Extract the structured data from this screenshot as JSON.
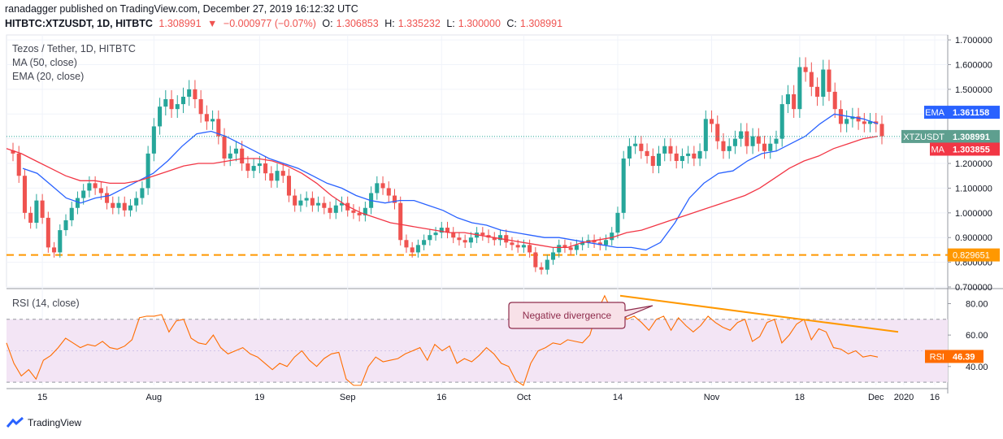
{
  "header": {
    "line1": "ranadagger published on TradingView.com, December 27, 2019 16:12:32 UTC",
    "symbol": "HITBTC:XTZUSDT, 1D, HITBTC",
    "last": "1.308991",
    "change": "−0.000977 (−0.07%)",
    "o_label": "O:",
    "o": "1.306853",
    "h_label": "H:",
    "h": "1.335232",
    "l_label": "L:",
    "l": "1.300000",
    "c_label": "C:",
    "c": "1.308991"
  },
  "legend": {
    "title": "Tezos / Tether, 1D, HITBTC",
    "ma": "MA (50, close)",
    "ema": "EMA (20, close)",
    "rsi": "RSI (14, close)"
  },
  "footer": {
    "brand": "TradingView"
  },
  "colors": {
    "up": "#26a69a",
    "down": "#ef5350",
    "ema": "#2962ff",
    "ma": "#f23645",
    "support": "#ff9800",
    "rsi": "#ff6d00",
    "rsi_band": "#f3e5f5",
    "trendline": "#ff9800"
  },
  "chart_data": [
    {
      "type": "candlestick",
      "title": "Tezos / Tether, 1D, HITBTC",
      "ylim": [
        0.7,
        1.72
      ],
      "y_ticks": [
        "1.700000",
        "1.600000",
        "1.500000",
        "1.400000",
        "1.300000",
        "1.200000",
        "1.100000",
        "1.000000",
        "0.900000",
        "0.800000",
        "0.700000"
      ],
      "x_ticks": [
        "15",
        "Aug",
        "19",
        "Sep",
        "16",
        "Oct",
        "14",
        "Nov",
        "18",
        "Dec",
        "16",
        "2020"
      ],
      "series": [
        {
          "name": "Price (approximate daily closes)",
          "values": [
            1.24,
            1.15,
            1.0,
            0.96,
            1.05,
            0.98,
            0.86,
            0.84,
            0.93,
            0.97,
            1.02,
            1.06,
            1.09,
            1.12,
            1.1,
            1.08,
            1.04,
            1.02,
            1.04,
            1.01,
            1.03,
            1.06,
            1.1,
            1.24,
            1.35,
            1.43,
            1.46,
            1.42,
            1.44,
            1.47,
            1.5,
            1.46,
            1.4,
            1.37,
            1.38,
            1.31,
            1.22,
            1.24,
            1.26,
            1.2,
            1.17,
            1.19,
            1.2,
            1.16,
            1.13,
            1.17,
            1.15,
            1.07,
            1.03,
            1.05,
            1.06,
            1.03,
            1.04,
            1.02,
            1.0,
            1.03,
            1.04,
            1.01,
            1.0,
            0.99,
            1.02,
            1.08,
            1.12,
            1.1,
            1.07,
            1.04,
            0.89,
            0.86,
            0.84,
            0.87,
            0.89,
            0.91,
            0.92,
            0.94,
            0.92,
            0.9,
            0.89,
            0.88,
            0.9,
            0.92,
            0.91,
            0.9,
            0.89,
            0.91,
            0.88,
            0.87,
            0.86,
            0.87,
            0.84,
            0.78,
            0.77,
            0.81,
            0.84,
            0.87,
            0.86,
            0.85,
            0.87,
            0.88,
            0.89,
            0.88,
            0.87,
            0.89,
            0.92,
            1.0,
            1.22,
            1.27,
            1.28,
            1.25,
            1.23,
            1.19,
            1.24,
            1.27,
            1.24,
            1.21,
            1.23,
            1.24,
            1.22,
            1.25,
            1.38,
            1.36,
            1.29,
            1.25,
            1.27,
            1.3,
            1.33,
            1.27,
            1.31,
            1.28,
            1.25,
            1.28,
            1.3,
            1.44,
            1.48,
            1.42,
            1.59,
            1.57,
            1.51,
            1.47,
            1.58,
            1.49,
            1.42,
            1.36,
            1.38,
            1.39,
            1.37,
            1.36,
            1.37,
            1.36,
            1.31
          ]
        },
        {
          "name": "EMA",
          "values": [
            1.18,
            1.16,
            1.11,
            1.06,
            1.04,
            1.06,
            1.07,
            1.1,
            1.13,
            1.16,
            1.21,
            1.27,
            1.32,
            1.33,
            1.31,
            1.28,
            1.25,
            1.22,
            1.2,
            1.18,
            1.15,
            1.12,
            1.1,
            1.07,
            1.05,
            1.04,
            1.05,
            1.05,
            1.03,
            1.01,
            0.98,
            0.96,
            0.95,
            0.93,
            0.92,
            0.91,
            0.9,
            0.9,
            0.89,
            0.88,
            0.87,
            0.86,
            0.86,
            0.85,
            0.88,
            0.96,
            1.06,
            1.12,
            1.16,
            1.17,
            1.21,
            1.24,
            1.25,
            1.28,
            1.31,
            1.36,
            1.4,
            1.39,
            1.38,
            1.36
          ]
        },
        {
          "name": "MA",
          "values": [
            1.26,
            1.24,
            1.21,
            1.18,
            1.15,
            1.13,
            1.13,
            1.12,
            1.12,
            1.13,
            1.15,
            1.17,
            1.19,
            1.2,
            1.2,
            1.21,
            1.22,
            1.22,
            1.21,
            1.19,
            1.16,
            1.12,
            1.07,
            1.03,
            1.0,
            0.98,
            0.96,
            0.95,
            0.94,
            0.93,
            0.92,
            0.92,
            0.91,
            0.9,
            0.89,
            0.88,
            0.87,
            0.86,
            0.86,
            0.88,
            0.89,
            0.9,
            0.92,
            0.93,
            0.95,
            0.97,
            0.99,
            1.01,
            1.03,
            1.05,
            1.07,
            1.1,
            1.14,
            1.18,
            1.21,
            1.23,
            1.26,
            1.28,
            1.3,
            1.31
          ]
        }
      ],
      "price_labels": [
        {
          "name": "EMA",
          "value": "1.361158",
          "y": 1.361158
        },
        {
          "name": "XTZUSDT",
          "value": "1.308991",
          "y": 1.308991
        },
        {
          "name": "MA",
          "value": "1.303855",
          "y": 1.303855
        }
      ],
      "support_level": {
        "value": "0.829651",
        "y": 0.829651
      }
    },
    {
      "type": "line",
      "title": "RSI (14, close)",
      "ylim": [
        28,
        88
      ],
      "y_ticks": [
        "80.00",
        "60.00",
        "40.00"
      ],
      "band": [
        30,
        70
      ],
      "series": [
        {
          "name": "RSI",
          "values": [
            55,
            42,
            34,
            38,
            32,
            44,
            47,
            52,
            58,
            55,
            52,
            54,
            53,
            56,
            52,
            51,
            53,
            57,
            71,
            72,
            72,
            73,
            62,
            69,
            70,
            58,
            55,
            54,
            60,
            52,
            48,
            50,
            52,
            48,
            46,
            42,
            38,
            42,
            40,
            46,
            50,
            44,
            40,
            45,
            48,
            49,
            32,
            28,
            28,
            40,
            46,
            43,
            44,
            45,
            48,
            50,
            52,
            44,
            54,
            50,
            53,
            42,
            45,
            43,
            47,
            52,
            48,
            42,
            40,
            31,
            28,
            42,
            50,
            52,
            55,
            54,
            57,
            56,
            55,
            60,
            75,
            85,
            75,
            79,
            70,
            72,
            68,
            63,
            70,
            72,
            63,
            71,
            66,
            62,
            66,
            72,
            68,
            65,
            63,
            68,
            70,
            56,
            59,
            68,
            70,
            55,
            60,
            67,
            70,
            57,
            64,
            62,
            52,
            51,
            48,
            50,
            46,
            47,
            46
          ]
        }
      ],
      "price_labels": [
        {
          "name": "RSI",
          "value": "46.39",
          "y": 46.39
        }
      ],
      "annotation": "Negative divergence"
    }
  ]
}
